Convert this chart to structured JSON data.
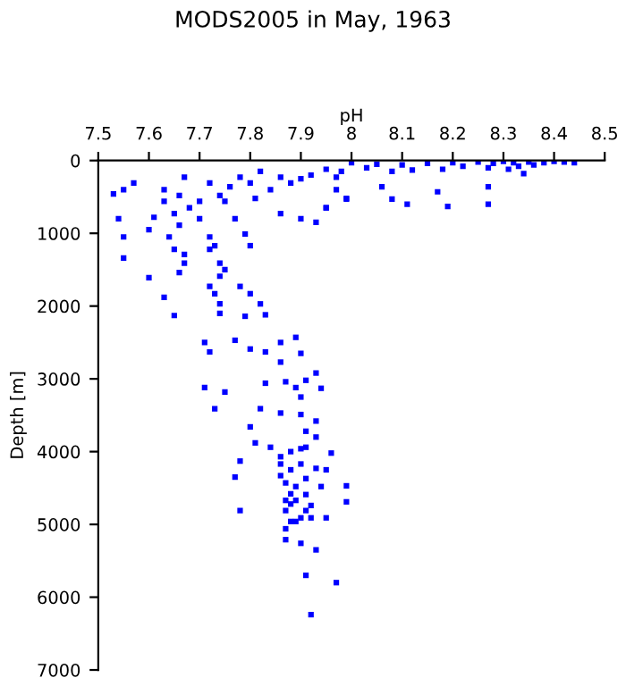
{
  "chart_data": {
    "type": "scatter",
    "title": "MODS2005 in May, 1963",
    "xlabel": "pH",
    "ylabel": "Depth [m]",
    "xlim": [
      7.5,
      8.5
    ],
    "xticks": [
      7.5,
      7.6,
      7.7,
      7.8,
      7.9,
      8,
      8.1,
      8.2,
      8.3,
      8.4,
      8.5
    ],
    "ylim": [
      7000,
      0
    ],
    "yticks": [
      0,
      1000,
      2000,
      3000,
      4000,
      5000,
      6000,
      7000
    ],
    "grid": false,
    "marker": "square",
    "color": "#0000ff",
    "x": [
      8.05,
      8.1,
      8.15,
      8.2,
      8.25,
      8.28,
      8.3,
      8.32,
      8.35,
      8.38,
      8.4,
      8.42,
      8.44,
      8.36,
      8.33,
      8.31,
      8.27,
      8.22,
      8.18,
      8.12,
      8.08,
      8.03,
      7.98,
      7.95,
      7.92,
      7.9,
      7.97,
      8.06,
      8.08,
      8.11,
      8.19,
      8.27,
      8.27,
      8.34,
      8.17,
      7.95,
      7.99,
      7.55,
      7.53,
      7.57,
      7.54,
      7.55,
      7.55,
      7.6,
      7.61,
      7.63,
      7.63,
      7.65,
      7.66,
      7.64,
      7.65,
      7.67,
      7.66,
      7.68,
      7.67,
      7.7,
      7.7,
      7.72,
      7.72,
      7.73,
      7.72,
      7.74,
      7.75,
      7.77,
      7.79,
      7.8,
      7.76,
      7.78,
      7.8,
      7.81,
      7.84,
      7.82,
      7.86,
      7.88,
      7.86,
      7.9,
      7.93,
      7.95,
      7.99,
      7.97,
      8.0,
      7.74,
      7.75,
      7.74,
      7.67,
      7.66,
      7.6,
      7.63,
      7.65,
      7.72,
      7.73,
      7.74,
      7.74,
      7.78,
      7.8,
      7.82,
      7.83,
      7.79,
      7.71,
      7.72,
      7.77,
      7.8,
      7.83,
      7.86,
      7.89,
      7.9,
      7.86,
      7.93,
      7.91,
      7.87,
      7.83,
      7.71,
      7.75,
      7.89,
      7.9,
      7.94,
      7.73,
      7.82,
      7.86,
      7.9,
      7.93,
      7.8,
      7.91,
      7.93,
      7.81,
      7.84,
      7.9,
      7.91,
      7.88,
      7.96,
      7.86,
      7.78,
      7.86,
      7.9,
      7.88,
      7.93,
      7.95,
      7.86,
      7.77,
      7.91,
      7.87,
      7.89,
      7.94,
      7.99,
      7.88,
      7.91,
      7.87,
      7.89,
      7.92,
      7.99,
      7.88,
      7.78,
      7.87,
      7.91,
      7.9,
      7.92,
      7.95,
      7.88,
      7.89,
      7.87,
      7.87,
      7.9,
      7.93,
      7.91,
      7.97,
      7.92
    ],
    "values": [
      50,
      60,
      40,
      30,
      20,
      40,
      10,
      30,
      20,
      30,
      10,
      20,
      30,
      60,
      80,
      120,
      100,
      80,
      120,
      130,
      150,
      100,
      150,
      120,
      200,
      250,
      230,
      360,
      530,
      600,
      630,
      600,
      360,
      180,
      430,
      650,
      530,
      400,
      460,
      310,
      800,
      1050,
      1340,
      950,
      780,
      400,
      560,
      730,
      890,
      1050,
      1220,
      1290,
      480,
      650,
      230,
      560,
      800,
      1050,
      1220,
      1170,
      310,
      480,
      560,
      800,
      1010,
      1170,
      360,
      230,
      310,
      520,
      400,
      150,
      230,
      310,
      730,
      800,
      850,
      650,
      520,
      400,
      30,
      1410,
      1500,
      1590,
      1410,
      1540,
      1610,
      1880,
      2130,
      1730,
      1830,
      1970,
      2100,
      1730,
      1830,
      1970,
      2120,
      2140,
      2500,
      2630,
      2470,
      2590,
      2630,
      2500,
      2430,
      2650,
      2770,
      2920,
      3020,
      3040,
      3060,
      3120,
      3180,
      3120,
      3250,
      3130,
      3410,
      3410,
      3470,
      3490,
      3580,
      3660,
      3720,
      3800,
      3880,
      3940,
      3960,
      3940,
      4000,
      4020,
      4070,
      4130,
      4170,
      4170,
      4250,
      4230,
      4250,
      4330,
      4350,
      4370,
      4430,
      4480,
      4480,
      4470,
      4580,
      4590,
      4670,
      4670,
      4740,
      4690,
      4720,
      4810,
      4810,
      4810,
      4910,
      4910,
      4910,
      4960,
      4960,
      5060,
      5210,
      5260,
      5350,
      5700,
      5800,
      6240
    ]
  }
}
